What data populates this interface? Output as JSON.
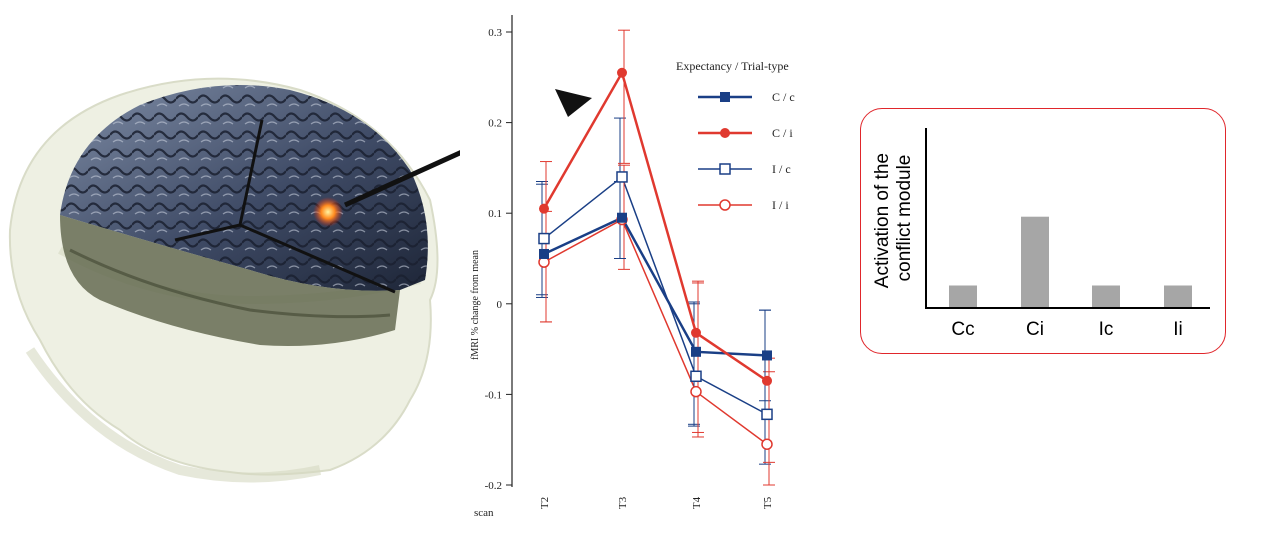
{
  "chart_data": [
    {
      "type": "line",
      "xlabel": "scan",
      "ylabel": "fMRI % change from mean",
      "ylim": [
        -0.2,
        0.3
      ],
      "yticks": [
        "0.3",
        "0.2",
        "0.1",
        "0",
        "-0.1",
        "-0.2"
      ],
      "categories": [
        "T2",
        "T3",
        "T4",
        "T5"
      ],
      "legend_title": "Expectancy / Trial-type",
      "legend_position": "top-right",
      "grid": false,
      "series": [
        {
          "name": "C / c",
          "values": [
            0.055,
            0.095,
            -0.053,
            -0.057
          ],
          "err_lo": [
            0.045,
            0.045,
            0.08,
            0.05
          ],
          "err_hi": [
            0.08,
            0.04,
            0.055,
            0.05
          ],
          "color": "#1a3f86",
          "marker": "filled-square",
          "line_width": 2.5
        },
        {
          "name": "C / i",
          "values": [
            0.105,
            0.255,
            -0.032,
            -0.085
          ],
          "err_lo": [
            0.125,
            0.1,
            0.11,
            0.09
          ],
          "err_hi": [
            0.052,
            0.047,
            0.057,
            0.025
          ],
          "color": "#e0392f",
          "marker": "filled-circle",
          "line_width": 2.5
        },
        {
          "name": "I / c",
          "values": [
            0.072,
            0.14,
            -0.08,
            -0.122
          ],
          "err_lo": [
            0.065,
            0.09,
            0.055,
            0.055
          ],
          "err_hi": [
            0.06,
            0.065,
            0.08,
            0.115
          ],
          "color": "#1a3f86",
          "marker": "open-square",
          "line_width": 1.5
        },
        {
          "name": "I / i",
          "values": [
            0.046,
            0.093,
            -0.097,
            -0.155
          ],
          "err_lo": [
            0.066,
            0.055,
            0.05,
            0.045
          ],
          "err_hi": [
            0.056,
            0.06,
            0.12,
            0.08
          ],
          "color": "#e0392f",
          "marker": "open-circle",
          "line_width": 1.5
        }
      ]
    },
    {
      "type": "bar",
      "ylabel": "Activation of the conflict module",
      "categories": [
        "Cc",
        "Ci",
        "Ic",
        "Ii"
      ],
      "values": [
        1,
        4.2,
        1,
        1
      ],
      "bar_color": "#a6a6a6",
      "frame_color": "#e0262b"
    }
  ]
}
